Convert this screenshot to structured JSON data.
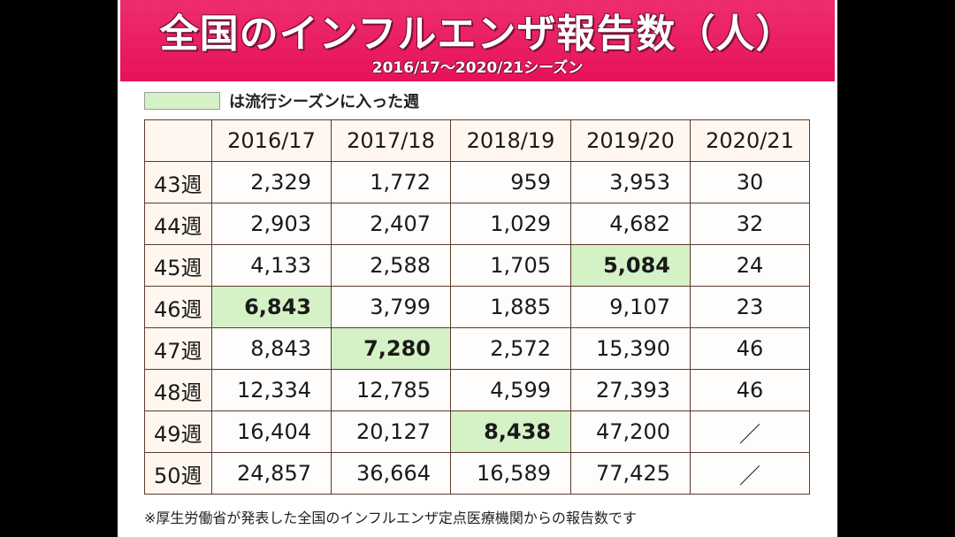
{
  "title": "全国のインフルエンザ報告数（人）",
  "subtitle": "2016/17〜2020/21シーズン",
  "legend_label": "は流行シーズンに入った週",
  "highlight_color": "#d5f1c6",
  "header_color": "#e6125a",
  "columns": [
    "",
    "2016/17",
    "2017/18",
    "2018/19",
    "2019/20",
    "2020/21"
  ],
  "rows": [
    {
      "week": "43週",
      "values": [
        "2,329",
        "1,772",
        "959",
        "3,953",
        "30"
      ],
      "highlight": -1
    },
    {
      "week": "44週",
      "values": [
        "2,903",
        "2,407",
        "1,029",
        "4,682",
        "32"
      ],
      "highlight": -1
    },
    {
      "week": "45週",
      "values": [
        "4,133",
        "2,588",
        "1,705",
        "5,084",
        "24"
      ],
      "highlight": 3
    },
    {
      "week": "46週",
      "values": [
        "6,843",
        "3,799",
        "1,885",
        "9,107",
        "23"
      ],
      "highlight": 0
    },
    {
      "week": "47週",
      "values": [
        "8,843",
        "7,280",
        "2,572",
        "15,390",
        "46"
      ],
      "highlight": 1
    },
    {
      "week": "48週",
      "values": [
        "12,334",
        "12,785",
        "4,599",
        "27,393",
        "46"
      ],
      "highlight": -1
    },
    {
      "week": "49週",
      "values": [
        "16,404",
        "20,127",
        "8,438",
        "47,200",
        "／"
      ],
      "highlight": 2
    },
    {
      "week": "50週",
      "values": [
        "24,857",
        "36,664",
        "16,589",
        "77,425",
        "／"
      ],
      "highlight": -1
    }
  ],
  "footnote": "※厚生労働省が発表した全国のインフルエンザ定点医療機関からの報告数です"
}
